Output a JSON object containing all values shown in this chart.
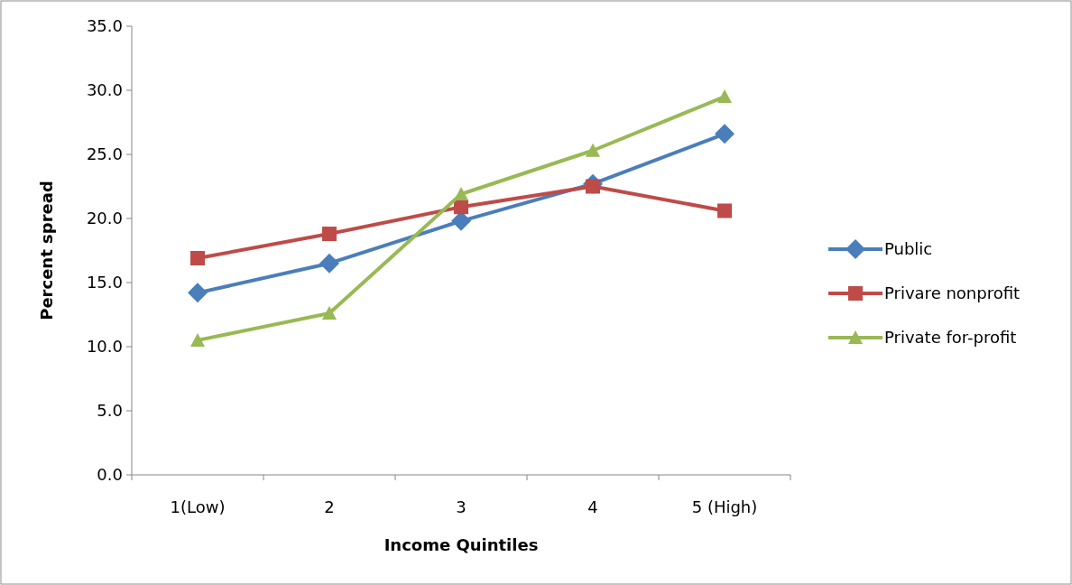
{
  "chart_data": {
    "type": "line",
    "xlabel": "Income Quintiles",
    "ylabel": "Percent spread",
    "categories": [
      "1(Low)",
      "2",
      "3",
      "4",
      "5 (High)"
    ],
    "series": [
      {
        "name": "Public",
        "color": "#4a7ebb",
        "marker": "diamond",
        "values": [
          14.2,
          16.5,
          19.8,
          22.7,
          26.6
        ]
      },
      {
        "name": "Privare nonprofit",
        "color": "#be4b48",
        "marker": "square",
        "values": [
          16.9,
          18.8,
          20.9,
          22.5,
          20.6
        ]
      },
      {
        "name": "Private for-profit",
        "color": "#98b954",
        "marker": "triangle",
        "values": [
          10.5,
          12.6,
          21.9,
          25.3,
          29.5
        ]
      }
    ],
    "ylim": [
      0,
      35
    ],
    "yticks": [
      {
        "value": 0,
        "label": "0.0"
      },
      {
        "value": 5,
        "label": "5.0"
      },
      {
        "value": 10,
        "label": "10.0"
      },
      {
        "value": 15,
        "label": "15.0"
      },
      {
        "value": 20,
        "label": "20.0"
      },
      {
        "value": 25,
        "label": "25.0"
      },
      {
        "value": 30,
        "label": "30.0"
      },
      {
        "value": 35,
        "label": "35.0"
      }
    ],
    "grid": false,
    "legend": "right",
    "line_style": "solid"
  }
}
